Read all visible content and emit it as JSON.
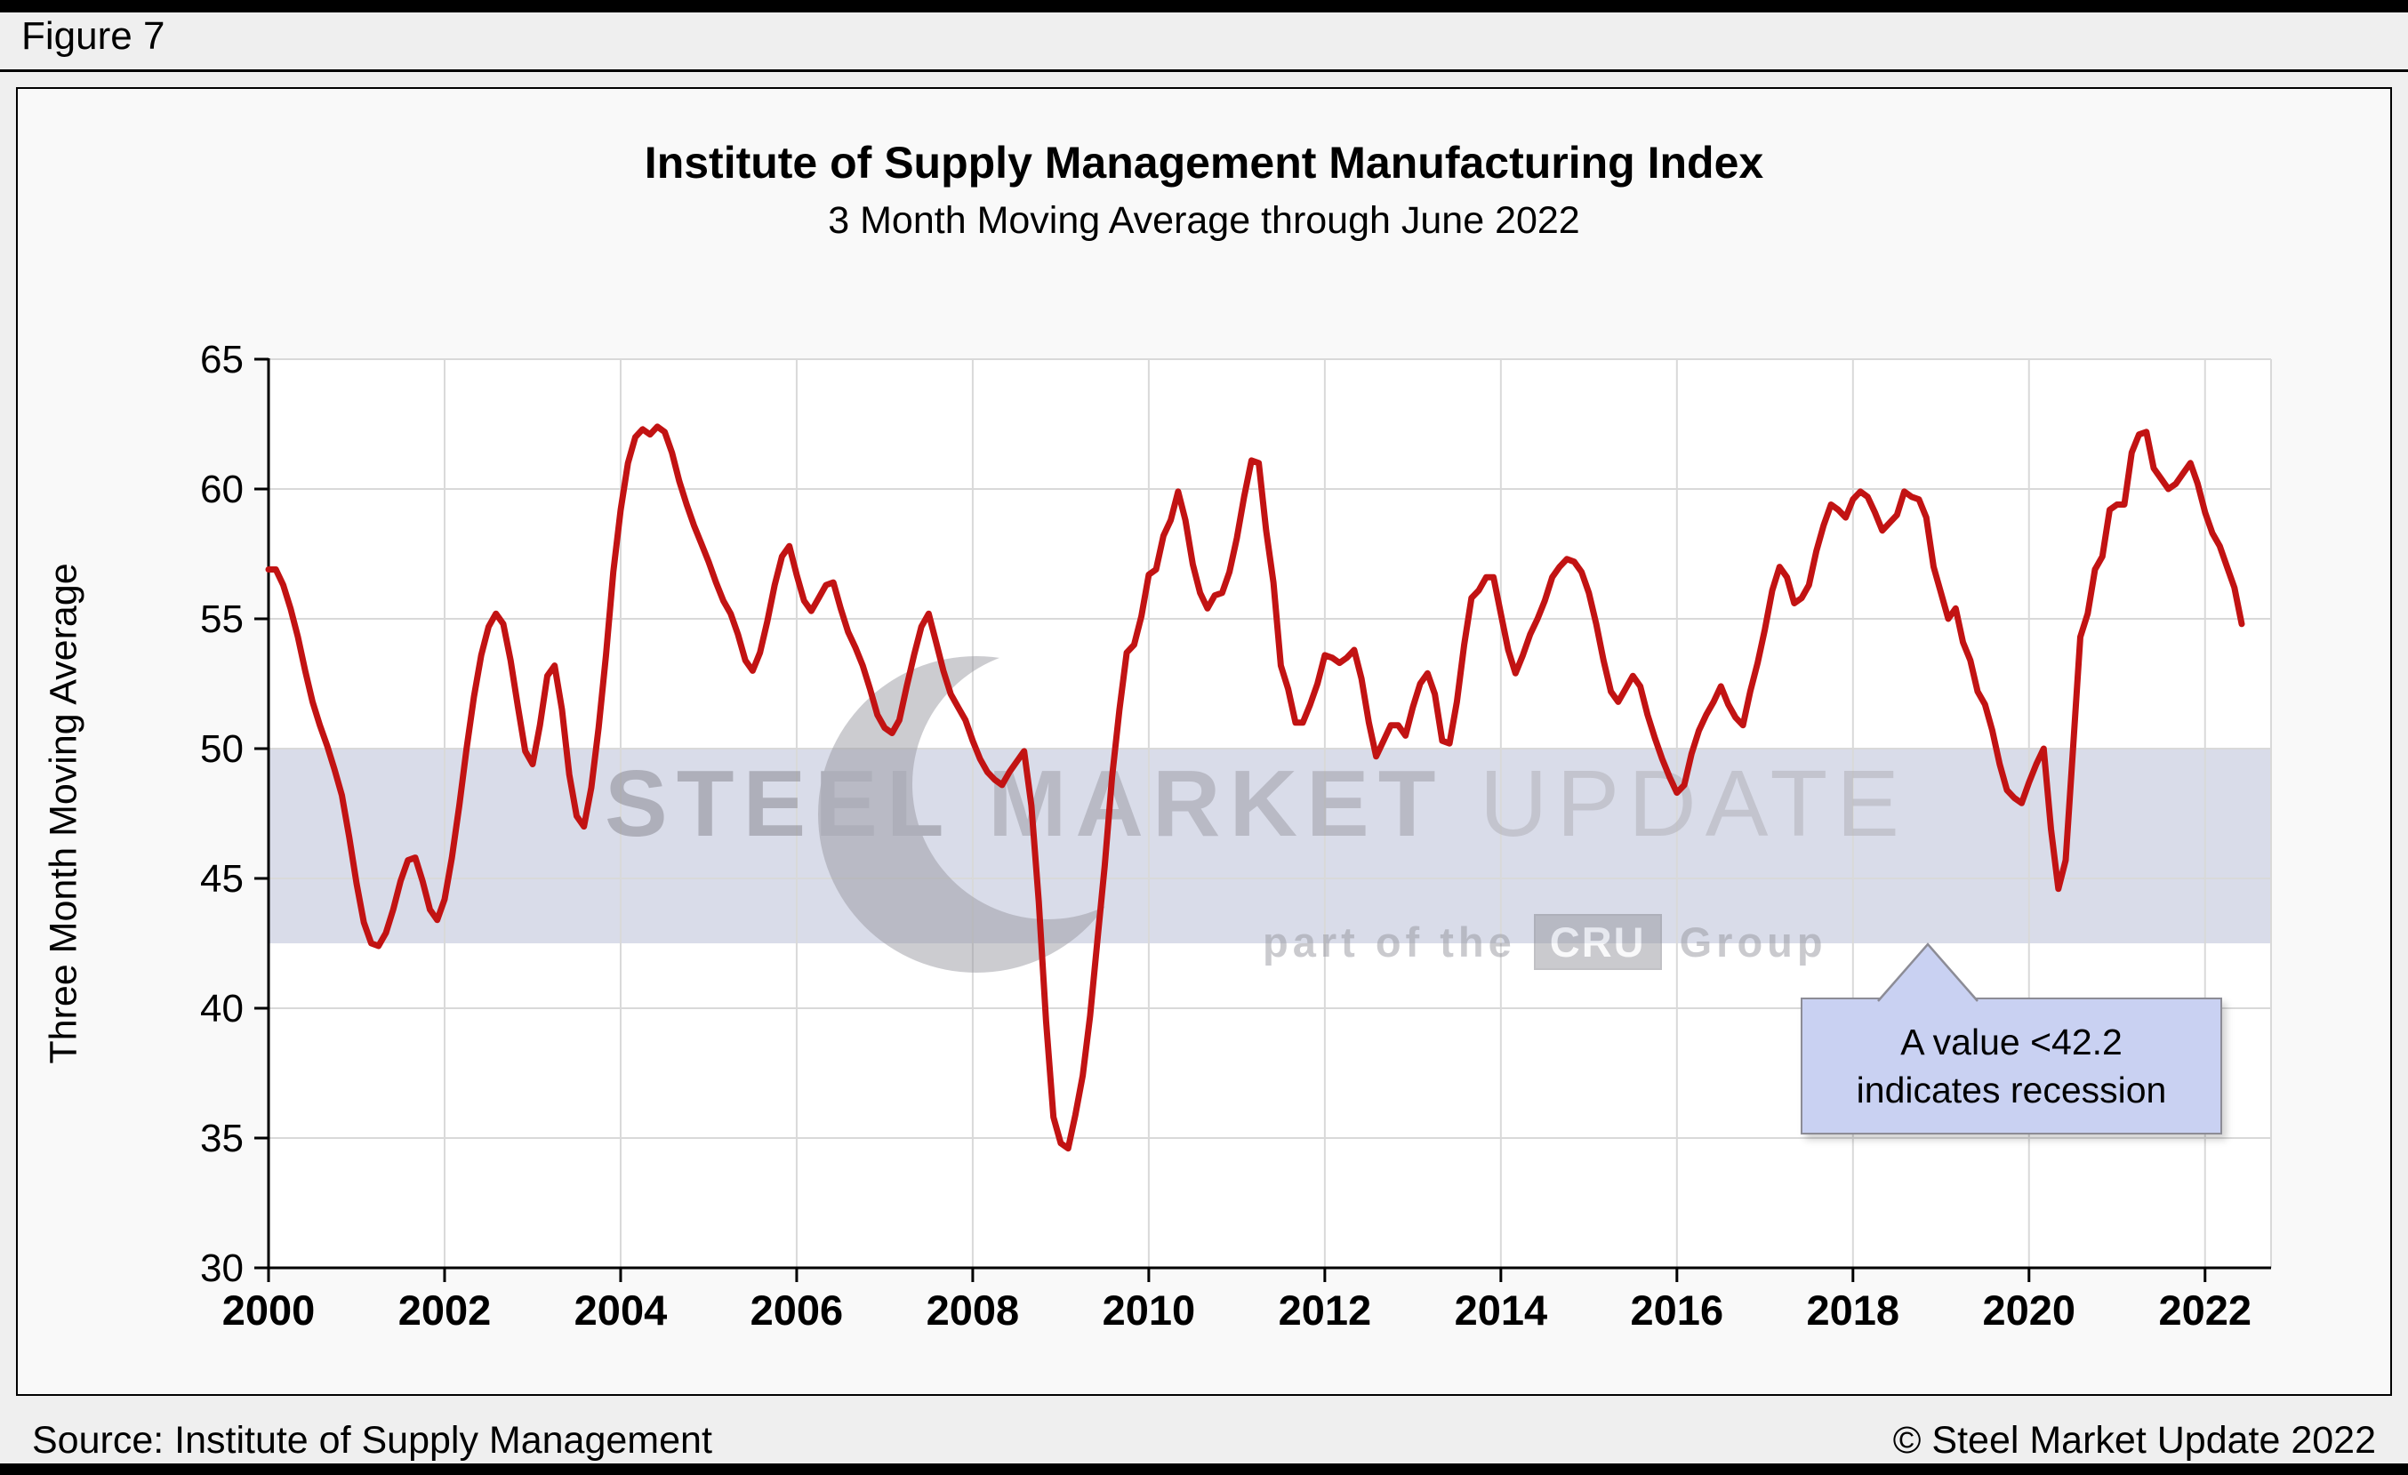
{
  "figure_label": "Figure 7",
  "title": "Institute of Supply Management Manufacturing Index",
  "subtitle": "3 Month Moving Average through June 2022",
  "y_axis_label": "Three Month Moving Average",
  "footer": {
    "source": "Source: Institute of Supply Management",
    "copyright": "© Steel Market Update 2022"
  },
  "annotation": {
    "line1": "A value <42.2",
    "line2": "indicates recession"
  },
  "watermark": {
    "brand_word1": "STEEL",
    "brand_word2": "MARKET",
    "brand_word3": "UPDATE",
    "tagline_prefix": "part of the",
    "tagline_box": "CRU",
    "tagline_suffix": "Group"
  },
  "colors": {
    "line": "#c21313",
    "band": "#d9dce9",
    "grid": "#d9d9d9",
    "axis": "#000000",
    "annotation_fill": "#c9d1f2",
    "annotation_border": "#8c8c96",
    "watermark_gray": "#9a9aa2"
  },
  "chart_data": {
    "type": "line",
    "title": "Institute of Supply Management Manufacturing Index",
    "subtitle": "3 Month Moving Average through June 2022",
    "xlabel": "",
    "ylabel": "Three Month Moving Average",
    "ylim": [
      30,
      65
    ],
    "xlim": [
      2000,
      2022.75
    ],
    "y_ticks": [
      30,
      35,
      40,
      45,
      50,
      55,
      60,
      65
    ],
    "x_ticks": [
      2000,
      2002,
      2004,
      2006,
      2008,
      2010,
      2012,
      2014,
      2016,
      2018,
      2020,
      2022
    ],
    "grid": true,
    "legend": "none",
    "recession_band": {
      "y_from": 42.5,
      "y_to": 50,
      "note": "A value <42.2 indicates recession"
    },
    "series": [
      {
        "name": "ISM Manufacturing Index, 3-month moving average",
        "frequency": "monthly",
        "x_start_year": 2000,
        "x_start_month": 1,
        "x_end_year": 2022,
        "x_end_month": 6,
        "values": [
          56.9,
          56.9,
          56.3,
          55.4,
          54.3,
          53.0,
          51.8,
          50.9,
          50.1,
          49.2,
          48.2,
          46.6,
          44.8,
          43.3,
          42.5,
          42.4,
          42.9,
          43.8,
          44.9,
          45.7,
          45.8,
          44.9,
          43.8,
          43.4,
          44.2,
          45.8,
          47.8,
          50.0,
          52.0,
          53.6,
          54.7,
          55.2,
          54.8,
          53.4,
          51.6,
          49.9,
          49.4,
          50.9,
          52.8,
          53.2,
          51.5,
          49.0,
          47.4,
          47.0,
          48.5,
          50.8,
          53.6,
          56.8,
          59.2,
          61.0,
          62.0,
          62.3,
          62.1,
          62.4,
          62.2,
          61.4,
          60.3,
          59.4,
          58.6,
          57.9,
          57.2,
          56.4,
          55.7,
          55.2,
          54.4,
          53.4,
          53.0,
          53.7,
          54.9,
          56.3,
          57.4,
          57.8,
          56.7,
          55.7,
          55.3,
          55.8,
          56.3,
          56.4,
          55.4,
          54.5,
          53.9,
          53.2,
          52.3,
          51.3,
          50.8,
          50.6,
          51.1,
          52.4,
          53.6,
          54.7,
          55.2,
          54.1,
          53.0,
          52.1,
          51.6,
          51.1,
          50.3,
          49.6,
          49.1,
          48.8,
          48.6,
          49.1,
          49.5,
          49.9,
          47.8,
          44.1,
          39.5,
          35.8,
          34.8,
          34.6,
          35.9,
          37.4,
          39.7,
          42.6,
          45.5,
          48.9,
          51.5,
          53.7,
          54.0,
          55.1,
          56.7,
          56.9,
          58.2,
          58.8,
          59.9,
          58.8,
          57.1,
          56.0,
          55.4,
          55.9,
          56.0,
          56.8,
          58.1,
          59.7,
          61.1,
          61.0,
          58.4,
          56.4,
          53.2,
          52.3,
          51.0,
          51.0,
          51.7,
          52.5,
          53.6,
          53.5,
          53.3,
          53.5,
          53.8,
          52.7,
          51.0,
          49.7,
          50.3,
          50.9,
          50.9,
          50.5,
          51.6,
          52.5,
          52.9,
          52.1,
          50.3,
          50.2,
          51.8,
          54.0,
          55.8,
          56.1,
          56.6,
          56.6,
          55.2,
          53.8,
          52.9,
          53.6,
          54.4,
          55.0,
          55.7,
          56.6,
          57.0,
          57.3,
          57.2,
          56.8,
          56.0,
          54.8,
          53.4,
          52.2,
          51.8,
          52.3,
          52.8,
          52.4,
          51.3,
          50.4,
          49.6,
          48.9,
          48.3,
          48.6,
          49.8,
          50.7,
          51.3,
          51.8,
          52.4,
          51.7,
          51.2,
          50.9,
          52.2,
          53.3,
          54.6,
          56.1,
          57.0,
          56.6,
          55.6,
          55.8,
          56.3,
          57.6,
          58.6,
          59.4,
          59.2,
          58.9,
          59.6,
          59.9,
          59.7,
          59.1,
          58.4,
          58.7,
          59.0,
          59.9,
          59.7,
          59.6,
          58.9,
          57.0,
          56.0,
          55.0,
          55.4,
          54.1,
          53.4,
          52.2,
          51.7,
          50.7,
          49.4,
          48.4,
          48.1,
          47.9,
          48.7,
          49.4,
          50.0,
          46.9,
          44.6,
          45.7,
          50.0,
          54.3,
          55.2,
          56.9,
          57.4,
          59.2,
          59.4,
          59.4,
          61.4,
          62.1,
          62.2,
          60.8,
          60.4,
          60.0,
          60.2,
          60.6,
          61.0,
          60.2,
          59.1,
          58.3,
          57.8,
          57.0,
          56.2,
          54.8
        ]
      }
    ]
  }
}
